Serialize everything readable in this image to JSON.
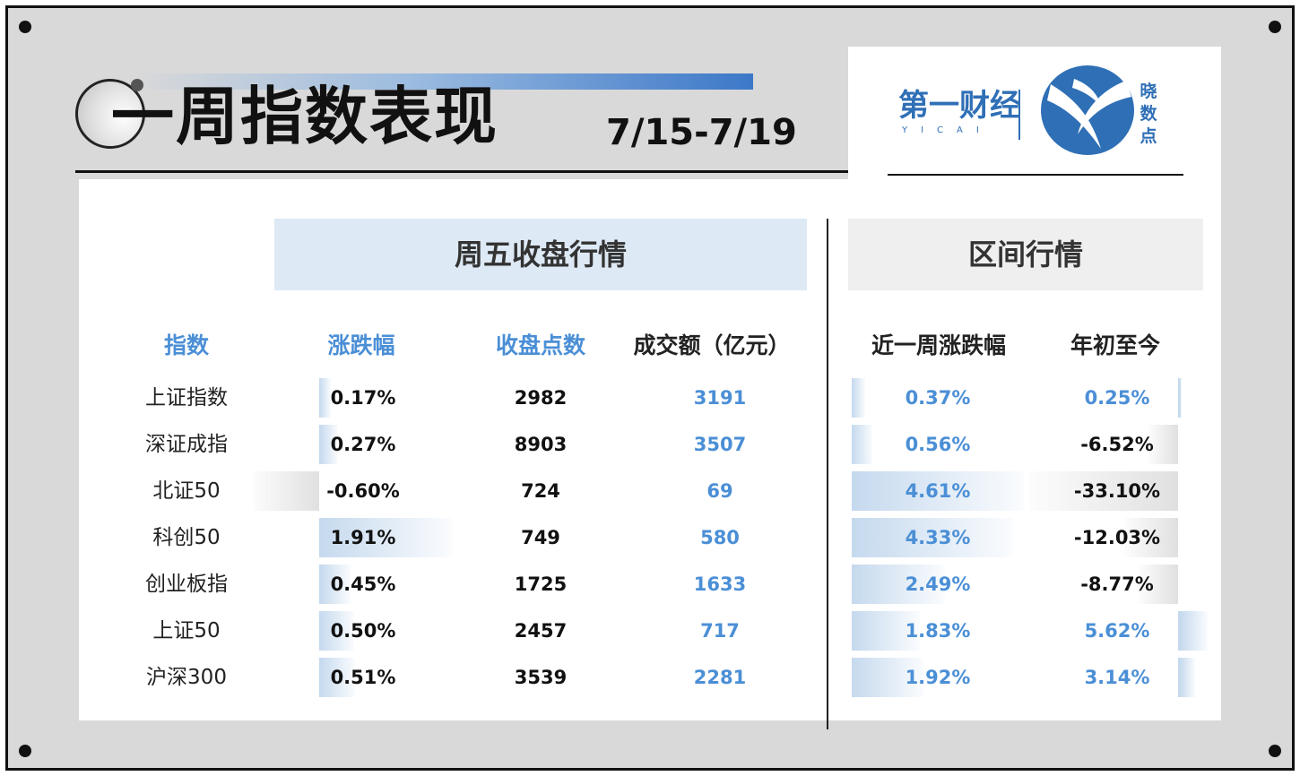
{
  "title": {
    "text": "一周指数表现",
    "date_range": "7/15-7/19"
  },
  "logo": {
    "brand": "第一财经",
    "brand_sub": "YICAI",
    "product": "晓数点"
  },
  "headers": {
    "friday_close": "周五收盘行情",
    "period": "区间行情"
  },
  "columns": {
    "index": "指数",
    "change": "涨跌幅",
    "close": "收盘点数",
    "turnover": "成交额（亿元）",
    "week_change": "近一周涨跌幅",
    "ytd": "年初至今"
  },
  "rows": [
    {
      "name": "上证指数",
      "change": "0.17%",
      "change_num": 0.17,
      "close": "2982",
      "turnover": "3191",
      "week": "0.37%",
      "week_num": 0.37,
      "ytd": "0.25%",
      "ytd_num": 0.25
    },
    {
      "name": "深证成指",
      "change": "0.27%",
      "change_num": 0.27,
      "close": "8903",
      "turnover": "3507",
      "week": "0.56%",
      "week_num": 0.56,
      "ytd": "-6.52%",
      "ytd_num": -6.52
    },
    {
      "name": "北证50",
      "change": "-0.60%",
      "change_num": -0.6,
      "close": "724",
      "turnover": "69",
      "week": "4.61%",
      "week_num": 4.61,
      "ytd": "-33.10%",
      "ytd_num": -33.1
    },
    {
      "name": "科创50",
      "change": "1.91%",
      "change_num": 1.91,
      "close": "749",
      "turnover": "580",
      "week": "4.33%",
      "week_num": 4.33,
      "ytd": "-12.03%",
      "ytd_num": -12.03
    },
    {
      "name": "创业板指",
      "change": "0.45%",
      "change_num": 0.45,
      "close": "1725",
      "turnover": "1633",
      "week": "2.49%",
      "week_num": 2.49,
      "ytd": "-8.77%",
      "ytd_num": -8.77
    },
    {
      "name": "上证50",
      "change": "0.50%",
      "change_num": 0.5,
      "close": "2457",
      "turnover": "717",
      "week": "1.83%",
      "week_num": 1.83,
      "ytd": "5.62%",
      "ytd_num": 5.62
    },
    {
      "name": "沪深300",
      "change": "0.51%",
      "change_num": 0.51,
      "close": "3539",
      "turnover": "2281",
      "week": "1.92%",
      "week_num": 1.92,
      "ytd": "3.14%",
      "ytd_num": 3.14
    }
  ]
}
